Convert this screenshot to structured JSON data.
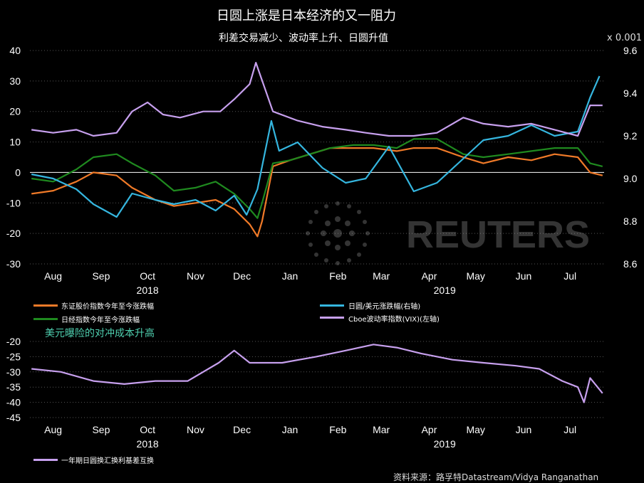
{
  "header": {
    "title": "日圆上涨是日本经济的又一阻力",
    "subtitle": "利差交易减少、波动率上升、日圆升值",
    "right_axis_multiplier": "x 0.001"
  },
  "top_chart": {
    "legend": [
      {
        "label": "东证股价指数今年至今涨跌幅",
        "color": "#f07a28"
      },
      {
        "label": "日圆/美元涨跌幅(右轴)",
        "color": "#35b6df"
      },
      {
        "label": "日经指数今年至今涨跌幅",
        "color": "#1f8a1f"
      },
      {
        "label": "Cboe波动率指数(VIX)(左轴)",
        "color": "#c7a0ee"
      }
    ]
  },
  "bottom_chart": {
    "annotation": "美元曝险的对冲成本升高",
    "legend": [
      {
        "label": "一年期日圆换汇换利基差互换",
        "color": "#c7a0ee"
      }
    ]
  },
  "watermark": {
    "text": "REUTERS"
  },
  "footer": {
    "source": "资料来源：路孚特Datastream/Vidya Ranganathan"
  },
  "chart_data": [
    {
      "type": "line",
      "title": "日圆上涨是日本经济的又一阻力",
      "subtitle": "利差交易减少、波动率上升、日圆升值",
      "x_tick_labels": [
        "Aug",
        "Sep",
        "Oct",
        "Nov",
        "Dec",
        "Jan",
        "Feb",
        "Mar",
        "Apr",
        "May",
        "Jun",
        "Jul"
      ],
      "x_year_labels": [
        "2018",
        "2019"
      ],
      "x_range": [
        "2018-07-31",
        "2019-08-06"
      ],
      "y_left_ticks": [
        40,
        30,
        20,
        10,
        0,
        -10,
        -20,
        -30
      ],
      "y_left_range": [
        -30,
        40
      ],
      "y_right_ticks": [
        9.6,
        9.4,
        9.2,
        9.0,
        8.8,
        8.6
      ],
      "y_right_range": [
        8.6,
        9.6
      ],
      "y_right_multiplier": "x 0.001",
      "zero_line": true,
      "series": [
        {
          "name": "东证股价指数今年至今涨跌幅",
          "axis": "left",
          "color": "#f07a28",
          "x": [
            "2018-08-01",
            "2018-08-15",
            "2018-08-30",
            "2018-09-10",
            "2018-09-25",
            "2018-10-05",
            "2018-10-20",
            "2018-11-01",
            "2018-11-15",
            "2018-11-28",
            "2018-12-10",
            "2018-12-20",
            "2018-12-25",
            "2018-12-28",
            "2019-01-04",
            "2019-01-15",
            "2019-01-28",
            "2019-02-10",
            "2019-02-25",
            "2019-03-10",
            "2019-03-25",
            "2019-04-05",
            "2019-04-20",
            "2019-05-07",
            "2019-05-20",
            "2019-06-05",
            "2019-06-20",
            "2019-07-05",
            "2019-07-20",
            "2019-07-28",
            "2019-08-05"
          ],
          "values": [
            -7,
            -6,
            -3,
            0,
            -1,
            -5,
            -9,
            -11,
            -10,
            -9,
            -12,
            -17,
            -21,
            -16,
            2,
            4,
            6,
            8,
            8,
            8,
            7,
            8,
            8,
            5,
            3,
            5,
            4,
            6,
            5,
            0,
            -1
          ]
        },
        {
          "name": "日经指数今年至今涨跌幅",
          "axis": "left",
          "color": "#1f8a1f",
          "x": [
            "2018-08-01",
            "2018-08-15",
            "2018-08-30",
            "2018-09-10",
            "2018-09-25",
            "2018-10-05",
            "2018-10-20",
            "2018-11-01",
            "2018-11-15",
            "2018-11-28",
            "2018-12-10",
            "2018-12-20",
            "2018-12-25",
            "2018-12-28",
            "2019-01-04",
            "2019-01-15",
            "2019-01-28",
            "2019-02-10",
            "2019-02-25",
            "2019-03-10",
            "2019-03-25",
            "2019-04-05",
            "2019-04-20",
            "2019-05-07",
            "2019-05-20",
            "2019-06-05",
            "2019-06-20",
            "2019-07-05",
            "2019-07-20",
            "2019-07-28",
            "2019-08-05"
          ],
          "values": [
            -2,
            -3,
            1,
            5,
            6,
            3,
            -1,
            -6,
            -5,
            -3,
            -7,
            -12,
            -15,
            -10,
            3,
            4,
            6,
            8,
            9,
            9,
            8,
            11,
            11,
            6,
            5,
            6,
            7,
            8,
            8,
            3,
            2
          ]
        },
        {
          "name": "日圆/美元涨跌幅(右轴)",
          "axis": "right",
          "color": "#35b6df",
          "x": [
            "2018-08-01",
            "2018-08-15",
            "2018-08-30",
            "2018-09-10",
            "2018-09-25",
            "2018-10-05",
            "2018-10-20",
            "2018-11-01",
            "2018-11-15",
            "2018-11-28",
            "2018-12-10",
            "2018-12-18",
            "2018-12-25",
            "2019-01-03",
            "2019-01-08",
            "2019-01-20",
            "2019-02-05",
            "2019-02-20",
            "2019-03-05",
            "2019-03-20",
            "2019-04-05",
            "2019-04-20",
            "2019-05-05",
            "2019-05-20",
            "2019-06-05",
            "2019-06-20",
            "2019-07-05",
            "2019-07-20",
            "2019-07-28",
            "2019-08-03"
          ],
          "values": [
            9.02,
            9.0,
            8.95,
            8.88,
            8.82,
            8.93,
            8.9,
            8.88,
            8.9,
            8.85,
            8.92,
            8.83,
            8.95,
            9.27,
            9.13,
            9.17,
            9.05,
            8.98,
            9.0,
            9.15,
            8.94,
            8.98,
            9.08,
            9.18,
            9.2,
            9.25,
            9.2,
            9.22,
            9.38,
            9.48
          ]
        },
        {
          "name": "Cboe波动率指数(VIX)(左轴)",
          "axis": "left",
          "color": "#c7a0ee",
          "x": [
            "2018-08-01",
            "2018-08-15",
            "2018-08-30",
            "2018-09-10",
            "2018-09-25",
            "2018-10-05",
            "2018-10-15",
            "2018-10-25",
            "2018-11-05",
            "2018-11-20",
            "2018-12-01",
            "2018-12-10",
            "2018-12-20",
            "2018-12-24",
            "2019-01-04",
            "2019-01-20",
            "2019-02-05",
            "2019-02-20",
            "2019-03-05",
            "2019-03-20",
            "2019-04-05",
            "2019-04-20",
            "2019-05-07",
            "2019-05-20",
            "2019-06-05",
            "2019-06-20",
            "2019-07-05",
            "2019-07-20",
            "2019-07-28",
            "2019-08-05"
          ],
          "values": [
            14,
            13,
            14,
            12,
            13,
            20,
            23,
            19,
            18,
            20,
            20,
            24,
            29,
            36,
            20,
            17,
            15,
            14,
            13,
            12,
            12,
            13,
            18,
            16,
            15,
            16,
            14,
            12,
            22,
            22
          ]
        }
      ]
    },
    {
      "type": "line",
      "title": "美元曝险的对冲成本升高",
      "x_tick_labels": [
        "Aug",
        "Sep",
        "Oct",
        "Nov",
        "Dec",
        "Jan",
        "Feb",
        "Mar",
        "Apr",
        "May",
        "Jun",
        "Jul"
      ],
      "x_year_labels": [
        "2018",
        "2019"
      ],
      "x_range": [
        "2018-07-31",
        "2019-08-06"
      ],
      "y_ticks": [
        -20,
        -25,
        -30,
        -35,
        -40,
        -45
      ],
      "y_range": [
        -45,
        -20
      ],
      "series": [
        {
          "name": "一年期日圆换汇换利基差互换",
          "color": "#c7a0ee",
          "x": [
            "2018-08-01",
            "2018-08-20",
            "2018-09-10",
            "2018-09-30",
            "2018-10-20",
            "2018-11-10",
            "2018-11-30",
            "2018-12-10",
            "2018-12-20",
            "2019-01-10",
            "2019-02-01",
            "2019-02-20",
            "2019-03-10",
            "2019-03-25",
            "2019-04-10",
            "2019-04-30",
            "2019-05-20",
            "2019-06-10",
            "2019-06-25",
            "2019-07-10",
            "2019-07-20",
            "2019-07-24",
            "2019-07-28",
            "2019-08-05"
          ],
          "values": [
            -29,
            -30,
            -33,
            -34,
            -33,
            -33,
            -27,
            -23,
            -27,
            -27,
            -25,
            -23,
            -21,
            -22,
            -24,
            -26,
            -27,
            -28,
            -29,
            -33,
            -35,
            -40,
            -32,
            -37
          ]
        }
      ]
    }
  ]
}
